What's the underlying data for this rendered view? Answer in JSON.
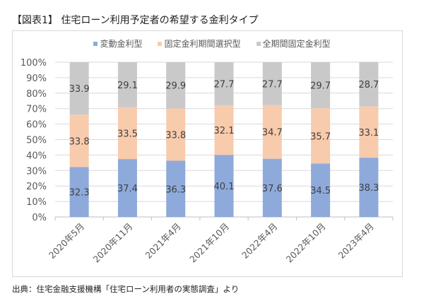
{
  "title": "【図表1】 住宅ローン利用予定者の希望する金利タイプ",
  "source": "出典：住宅金融支援機構「住宅ローン利用者の実態調査」より",
  "chart_data": {
    "type": "bar",
    "stacked": true,
    "percent_stacked": true,
    "categories": [
      "2020年5月",
      "2020年11月",
      "2021年4月",
      "2021年10月",
      "2022年4月",
      "2022年10月",
      "2023年4月"
    ],
    "series": [
      {
        "name": "変動金利型",
        "color": "#8eaadb",
        "values": [
          32.3,
          37.4,
          36.3,
          40.1,
          37.6,
          34.5,
          38.3
        ]
      },
      {
        "name": "固定金利期間選択型",
        "color": "#f8cbad",
        "values": [
          33.8,
          33.5,
          33.8,
          32.1,
          34.7,
          35.7,
          33.1
        ]
      },
      {
        "name": "全期間固定金利型",
        "color": "#c9c9c9",
        "values": [
          33.9,
          29.1,
          29.9,
          27.7,
          27.7,
          29.7,
          28.7
        ]
      }
    ],
    "y_ticks": [
      "0%",
      "10%",
      "20%",
      "30%",
      "40%",
      "50%",
      "60%",
      "70%",
      "80%",
      "90%",
      "100%"
    ],
    "ylim": [
      0,
      100
    ],
    "grid": true,
    "legend_position": "top-center",
    "xlabel": "",
    "ylabel": ""
  }
}
